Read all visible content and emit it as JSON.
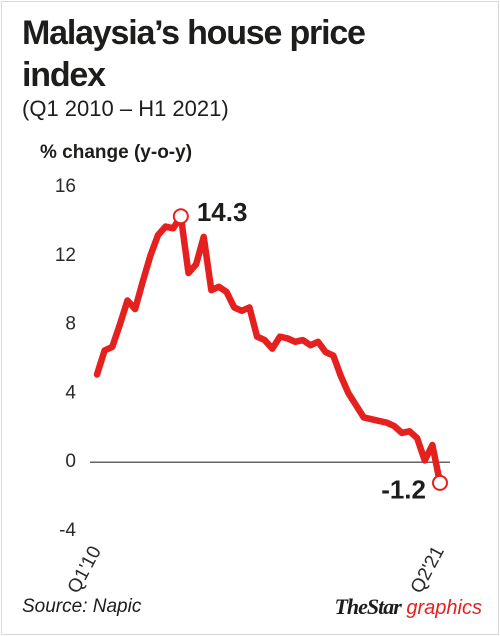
{
  "chart_data": {
    "type": "line",
    "title": "Malaysia’s house price index",
    "subtitle": "(Q1 2010 – H1 2021)",
    "y_axis_label": "% change (y-o-y)",
    "categories": [
      "Q1'10",
      null,
      null,
      null,
      null,
      null,
      null,
      null,
      null,
      null,
      null,
      null,
      null,
      null,
      null,
      null,
      null,
      null,
      null,
      null,
      null,
      null,
      null,
      null,
      null,
      null,
      null,
      null,
      null,
      null,
      null,
      null,
      null,
      null,
      null,
      null,
      null,
      null,
      null,
      null,
      null,
      null,
      null,
      null,
      null,
      "Q2'21"
    ],
    "series": [
      {
        "color": "#e5211f",
        "values": [
          5.1,
          6.5,
          6.7,
          8.0,
          9.4,
          8.9,
          10.5,
          12.0,
          13.2,
          13.7,
          13.6,
          14.3,
          11.0,
          11.5,
          13.1,
          10.0,
          10.2,
          9.9,
          9.0,
          8.8,
          9.0,
          7.3,
          7.1,
          6.6,
          7.3,
          7.2,
          7.0,
          7.1,
          6.8,
          7.0,
          6.4,
          6.2,
          5.0,
          4.0,
          3.3,
          2.6,
          2.5,
          2.4,
          2.3,
          2.1,
          1.7,
          1.8,
          1.4,
          0.1,
          1.0,
          -1.2
        ]
      }
    ],
    "highlight_points": [
      11,
      45
    ],
    "ylim": [
      -4,
      16
    ],
    "yticks": [
      16,
      12,
      8,
      4,
      0,
      -4
    ],
    "grid": false,
    "zero_line": true,
    "source": "Source: Napic",
    "credit_brand": "TheStar",
    "credit": "graphics"
  }
}
